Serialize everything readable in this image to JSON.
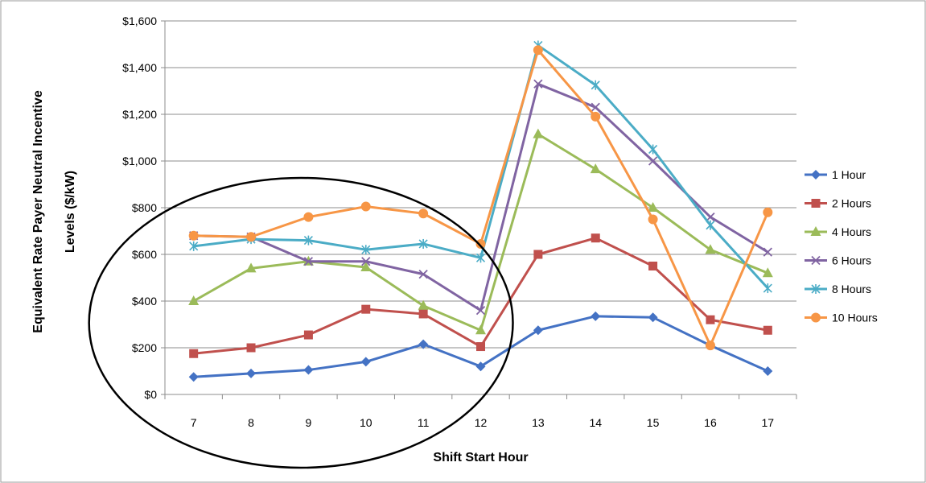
{
  "chart_data": {
    "type": "line",
    "title": "",
    "xlabel": "Shift Start Hour",
    "ylabel_line1": "Equivalent Rate Payer Neutral Incentive",
    "ylabel_line2": "Levels ($/kW)",
    "categories": [
      "7",
      "8",
      "9",
      "10",
      "11",
      "12",
      "13",
      "14",
      "15",
      "16",
      "17"
    ],
    "y_ticks": [
      "$0",
      "$200",
      "$400",
      "$600",
      "$800",
      "$1,000",
      "$1,200",
      "$1,400",
      "$1,600"
    ],
    "ylim": [
      0,
      1600
    ],
    "grid": "horizontal",
    "legend_position": "right",
    "series": [
      {
        "name": "1 Hour",
        "color": "#4472C4",
        "marker": "diamond",
        "values": [
          75,
          90,
          105,
          140,
          215,
          120,
          275,
          335,
          330,
          210,
          100
        ]
      },
      {
        "name": "2 Hours",
        "color": "#C0504D",
        "marker": "square",
        "values": [
          175,
          200,
          255,
          365,
          345,
          205,
          600,
          670,
          550,
          320,
          275
        ]
      },
      {
        "name": "4 Hours",
        "color": "#9BBB59",
        "marker": "triangle",
        "values": [
          400,
          540,
          570,
          545,
          380,
          275,
          1115,
          965,
          800,
          620,
          520
        ]
      },
      {
        "name": "6 Hours",
        "color": "#8064A2",
        "marker": "x",
        "values": [
          680,
          675,
          570,
          570,
          515,
          360,
          1330,
          1230,
          1000,
          760,
          610
        ]
      },
      {
        "name": "8 Hours",
        "color": "#4BACC6",
        "marker": "star",
        "values": [
          635,
          665,
          660,
          620,
          645,
          585,
          1495,
          1325,
          1050,
          725,
          455
        ]
      },
      {
        "name": "10 Hours",
        "color": "#F79646",
        "marker": "circle",
        "values": [
          680,
          675,
          760,
          805,
          775,
          645,
          1475,
          1190,
          750,
          210,
          780
        ]
      }
    ],
    "annotations": [
      {
        "shape": "ellipse",
        "around_categories": [
          "7",
          "12"
        ]
      }
    ]
  }
}
